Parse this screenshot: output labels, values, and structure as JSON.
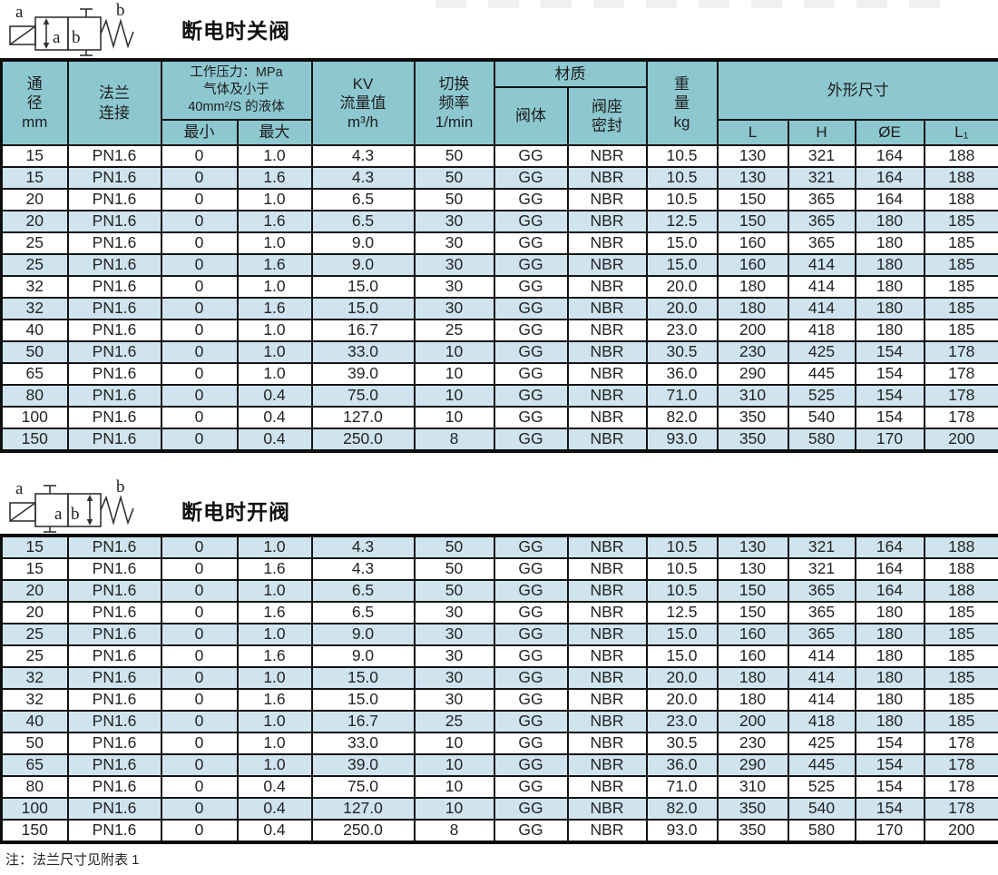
{
  "sections": [
    {
      "title": "断电时关阀"
    },
    {
      "title": "断电时开阀"
    }
  ],
  "symbol_labels": {
    "a": "a",
    "b": "b"
  },
  "table": {
    "header": {
      "diameter": "通\n径\nmm",
      "flange": "法兰\n连接",
      "pressure_group": "工作压力：MPa\n气体及小于\n40mm²/S 的液体",
      "pressure_min": "最小",
      "pressure_max": "最大",
      "kv": "KV\n流量值\nm³/h",
      "frequency": "切换\n频率\n1/min",
      "material_group": "材质",
      "material_body": "阀体",
      "material_seal": "阀座\n密封",
      "weight": "重\n量\nkg",
      "dimensions_group": "外形尺寸",
      "dim_l": "L",
      "dim_h": "H",
      "dim_oe": "ØE",
      "dim_l1": "L₁"
    },
    "rows": [
      [
        "15",
        "PN1.6",
        "0",
        "1.0",
        "4.3",
        "50",
        "GG",
        "NBR",
        "10.5",
        "130",
        "321",
        "164",
        "188"
      ],
      [
        "15",
        "PN1.6",
        "0",
        "1.6",
        "4.3",
        "50",
        "GG",
        "NBR",
        "10.5",
        "130",
        "321",
        "164",
        "188"
      ],
      [
        "20",
        "PN1.6",
        "0",
        "1.0",
        "6.5",
        "50",
        "GG",
        "NBR",
        "10.5",
        "150",
        "365",
        "164",
        "188"
      ],
      [
        "20",
        "PN1.6",
        "0",
        "1.6",
        "6.5",
        "30",
        "GG",
        "NBR",
        "12.5",
        "150",
        "365",
        "180",
        "185"
      ],
      [
        "25",
        "PN1.6",
        "0",
        "1.0",
        "9.0",
        "30",
        "GG",
        "NBR",
        "15.0",
        "160",
        "365",
        "180",
        "185"
      ],
      [
        "25",
        "PN1.6",
        "0",
        "1.6",
        "9.0",
        "30",
        "GG",
        "NBR",
        "15.0",
        "160",
        "414",
        "180",
        "185"
      ],
      [
        "32",
        "PN1.6",
        "0",
        "1.0",
        "15.0",
        "30",
        "GG",
        "NBR",
        "20.0",
        "180",
        "414",
        "180",
        "185"
      ],
      [
        "32",
        "PN1.6",
        "0",
        "1.6",
        "15.0",
        "30",
        "GG",
        "NBR",
        "20.0",
        "180",
        "414",
        "180",
        "185"
      ],
      [
        "40",
        "PN1.6",
        "0",
        "1.0",
        "16.7",
        "25",
        "GG",
        "NBR",
        "23.0",
        "200",
        "418",
        "180",
        "185"
      ],
      [
        "50",
        "PN1.6",
        "0",
        "1.0",
        "33.0",
        "10",
        "GG",
        "NBR",
        "30.5",
        "230",
        "425",
        "154",
        "178"
      ],
      [
        "65",
        "PN1.6",
        "0",
        "1.0",
        "39.0",
        "10",
        "GG",
        "NBR",
        "36.0",
        "290",
        "445",
        "154",
        "178"
      ],
      [
        "80",
        "PN1.6",
        "0",
        "0.4",
        "75.0",
        "10",
        "GG",
        "NBR",
        "71.0",
        "310",
        "525",
        "154",
        "178"
      ],
      [
        "100",
        "PN1.6",
        "0",
        "0.4",
        "127.0",
        "10",
        "GG",
        "NBR",
        "82.0",
        "350",
        "540",
        "154",
        "178"
      ],
      [
        "150",
        "PN1.6",
        "0",
        "0.4",
        "250.0",
        "8",
        "GG",
        "NBR",
        "93.0",
        "350",
        "580",
        "170",
        "200"
      ]
    ]
  },
  "note": "注：法兰尺寸见附表 1",
  "colors": {
    "header_bg": "#8dc8d0",
    "stripe_bg": "#cfe4ef",
    "border": "#141414"
  }
}
